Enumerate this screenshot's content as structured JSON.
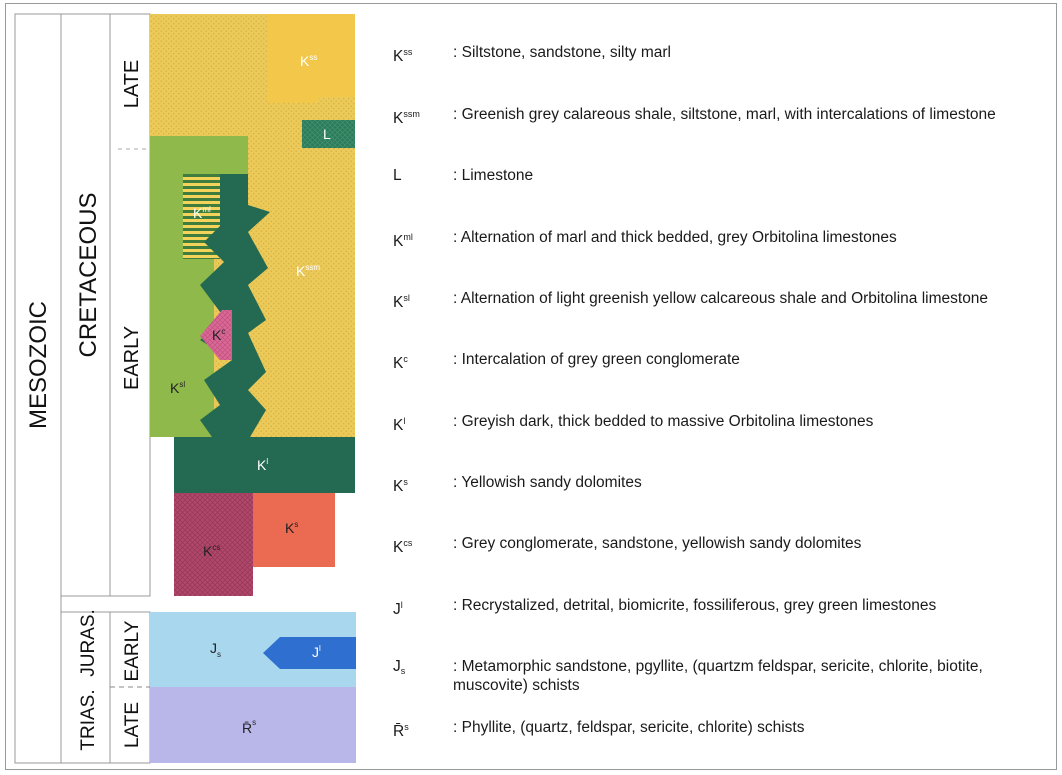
{
  "eras": {
    "mesozoic": "MESOZOIC",
    "cretaceous": "CRETACEOUS",
    "late": "LATE",
    "early": "EARLY",
    "trias": "TRIAS.",
    "juras": "JURAS.",
    "juras_early": "EARLY",
    "trias_late": "LATE"
  },
  "units": {
    "kss": {
      "base": "K",
      "sup": "ss"
    },
    "l": {
      "base": "L",
      "sup": ""
    },
    "kml": {
      "base": "K",
      "sup": "ml"
    },
    "kssm": {
      "base": "K",
      "sup": "ssm"
    },
    "kc": {
      "base": "K",
      "sup": "c"
    },
    "ksl": {
      "base": "K",
      "sup": "sl"
    },
    "kl": {
      "base": "K",
      "sup": "l"
    },
    "ks": {
      "base": "K",
      "sup": "s"
    },
    "kcs": {
      "base": "K",
      "sup": "cs"
    },
    "js": {
      "base": "J",
      "sub": "s"
    },
    "jl": {
      "base": "J",
      "sup": "l"
    },
    "trs": {
      "base": "R̄",
      "sup": "s"
    }
  },
  "colors": {
    "kss": "#f3c84a",
    "kssm": "#ecca5a",
    "l": "#2e7a5a",
    "ksl": "#8fb94a",
    "kl": "#246a52",
    "kc": "#d96a96",
    "ks": "#ea6a52",
    "kcs": "#b0486a",
    "js": "#a9d8ee",
    "jl": "#2f6fd0",
    "trs": "#b9b6ea"
  },
  "legend": [
    {
      "base": "K",
      "sup": "ss",
      "sub": "",
      "desc": ": Siltstone, sandstone, silty marl"
    },
    {
      "base": "K",
      "sup": "ssm",
      "sub": "",
      "desc": ": Greenish grey calareous shale, siltstone, marl, with intercalations of limestone"
    },
    {
      "base": "L",
      "sup": "",
      "sub": "",
      "desc": ": Limestone"
    },
    {
      "base": "K",
      "sup": "ml",
      "sub": "",
      "desc": ": Alternation of marl and thick bedded, grey Orbitolina limestones"
    },
    {
      "base": "K",
      "sup": "sl",
      "sub": "",
      "desc": ": Alternation of light greenish yellow calcareous shale and Orbitolina limestone"
    },
    {
      "base": "K",
      "sup": "c",
      "sub": "",
      "desc": ": Intercalation of grey green conglomerate"
    },
    {
      "base": "K",
      "sup": "l",
      "sub": "",
      "desc": ": Greyish dark, thick bedded to massive Orbitolina limestones"
    },
    {
      "base": "K",
      "sup": "s",
      "sub": "",
      "desc": ": Yellowish sandy dolomites"
    },
    {
      "base": "K",
      "sup": "cs",
      "sub": "",
      "desc": ": Grey conglomerate, sandstone, yellowish sandy dolomites"
    },
    {
      "base": "J",
      "sup": "l",
      "sub": "",
      "desc": ": Recrystalized, detrital, biomicrite, fossiliferous, grey green limestones"
    },
    {
      "base": "J",
      "sup": "",
      "sub": "s",
      "desc": ": Metamorphic sandstone, pgyllite, (quartzm feldspar, sericite, chlorite, biotite, muscovite) schists"
    },
    {
      "base": "R̄",
      "sup": "s",
      "sub": "",
      "desc": ": Phyllite, (quartz, feldspar, sericite, chlorite) schists"
    }
  ]
}
